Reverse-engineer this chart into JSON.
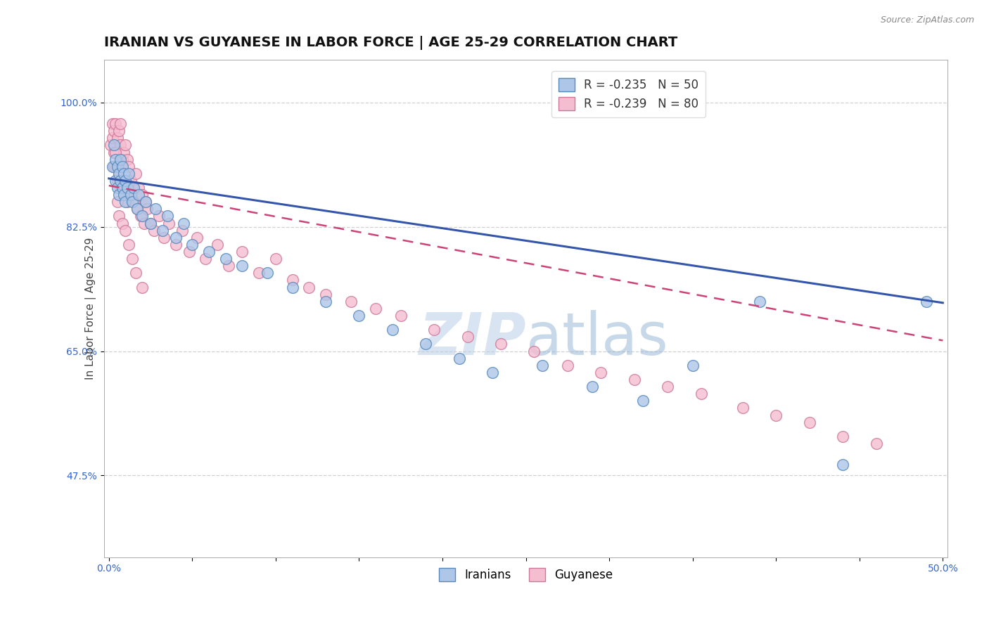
{
  "title": "IRANIAN VS GUYANESE IN LABOR FORCE | AGE 25-29 CORRELATION CHART",
  "source_text": "Source: ZipAtlas.com",
  "ylabel": "In Labor Force | Age 25-29",
  "xlim": [
    0.0,
    0.5
  ],
  "ylim": [
    0.36,
    1.06
  ],
  "xtick_vals": [
    0.0,
    0.05,
    0.1,
    0.15,
    0.2,
    0.25,
    0.3,
    0.35,
    0.4,
    0.45,
    0.5
  ],
  "xtick_labels": [
    "0.0%",
    "",
    "",
    "",
    "",
    "",
    "",
    "",
    "",
    "",
    "50.0%"
  ],
  "ytick_vals": [
    0.475,
    0.65,
    0.825,
    1.0
  ],
  "ytick_labels": [
    "47.5%",
    "65.0%",
    "82.5%",
    "100.0%"
  ],
  "grid_color": "#cccccc",
  "background_color": "#ffffff",
  "iranians_color": "#aec6e8",
  "iranians_edge_color": "#5588bb",
  "guyanese_color": "#f5bdd0",
  "guyanese_edge_color": "#cc7799",
  "R_iranians": -0.235,
  "N_iranians": 50,
  "R_guyanese": -0.239,
  "N_guyanese": 80,
  "iranians_line_color": "#3355aa",
  "guyanese_line_color": "#cc4477",
  "title_fontsize": 14,
  "axis_label_fontsize": 11,
  "tick_fontsize": 10,
  "legend_fontsize": 12,
  "watermark_zip": "ZIP",
  "watermark_atlas": "atlas",
  "watermark_color_zip": "#b8cfe8",
  "watermark_color_atlas": "#9ab8d8",
  "iranians_x": [
    0.002,
    0.003,
    0.004,
    0.004,
    0.005,
    0.005,
    0.006,
    0.006,
    0.007,
    0.007,
    0.008,
    0.008,
    0.009,
    0.009,
    0.01,
    0.01,
    0.011,
    0.012,
    0.013,
    0.014,
    0.015,
    0.017,
    0.018,
    0.02,
    0.022,
    0.025,
    0.028,
    0.032,
    0.035,
    0.04,
    0.045,
    0.05,
    0.06,
    0.07,
    0.08,
    0.095,
    0.11,
    0.13,
    0.15,
    0.17,
    0.19,
    0.21,
    0.23,
    0.26,
    0.29,
    0.32,
    0.35,
    0.39,
    0.44,
    0.49
  ],
  "iranians_y": [
    0.91,
    0.94,
    0.89,
    0.92,
    0.88,
    0.91,
    0.87,
    0.9,
    0.89,
    0.92,
    0.88,
    0.91,
    0.87,
    0.9,
    0.89,
    0.86,
    0.88,
    0.9,
    0.87,
    0.86,
    0.88,
    0.85,
    0.87,
    0.84,
    0.86,
    0.83,
    0.85,
    0.82,
    0.84,
    0.81,
    0.83,
    0.8,
    0.79,
    0.78,
    0.77,
    0.76,
    0.74,
    0.72,
    0.7,
    0.68,
    0.66,
    0.64,
    0.62,
    0.63,
    0.6,
    0.58,
    0.63,
    0.72,
    0.49,
    0.72
  ],
  "guyanese_x": [
    0.001,
    0.002,
    0.002,
    0.003,
    0.003,
    0.004,
    0.004,
    0.005,
    0.005,
    0.006,
    0.006,
    0.007,
    0.007,
    0.007,
    0.008,
    0.008,
    0.009,
    0.009,
    0.01,
    0.01,
    0.011,
    0.011,
    0.012,
    0.012,
    0.013,
    0.014,
    0.015,
    0.016,
    0.017,
    0.018,
    0.019,
    0.02,
    0.021,
    0.022,
    0.023,
    0.025,
    0.027,
    0.03,
    0.033,
    0.036,
    0.04,
    0.044,
    0.048,
    0.053,
    0.058,
    0.065,
    0.072,
    0.08,
    0.09,
    0.1,
    0.11,
    0.12,
    0.13,
    0.145,
    0.16,
    0.175,
    0.195,
    0.215,
    0.235,
    0.255,
    0.275,
    0.295,
    0.315,
    0.335,
    0.355,
    0.38,
    0.4,
    0.42,
    0.44,
    0.46,
    0.003,
    0.004,
    0.005,
    0.006,
    0.008,
    0.01,
    0.012,
    0.014,
    0.016,
    0.02
  ],
  "guyanese_y": [
    0.94,
    0.97,
    0.95,
    0.96,
    0.93,
    0.97,
    0.91,
    0.95,
    0.89,
    0.96,
    0.9,
    0.94,
    0.88,
    0.97,
    0.92,
    0.88,
    0.93,
    0.87,
    0.94,
    0.88,
    0.92,
    0.86,
    0.91,
    0.87,
    0.89,
    0.88,
    0.86,
    0.9,
    0.85,
    0.88,
    0.84,
    0.87,
    0.83,
    0.86,
    0.85,
    0.83,
    0.82,
    0.84,
    0.81,
    0.83,
    0.8,
    0.82,
    0.79,
    0.81,
    0.78,
    0.8,
    0.77,
    0.79,
    0.76,
    0.78,
    0.75,
    0.74,
    0.73,
    0.72,
    0.71,
    0.7,
    0.68,
    0.67,
    0.66,
    0.65,
    0.63,
    0.62,
    0.61,
    0.6,
    0.59,
    0.57,
    0.56,
    0.55,
    0.53,
    0.52,
    0.91,
    0.93,
    0.86,
    0.84,
    0.83,
    0.82,
    0.8,
    0.78,
    0.76,
    0.74
  ]
}
